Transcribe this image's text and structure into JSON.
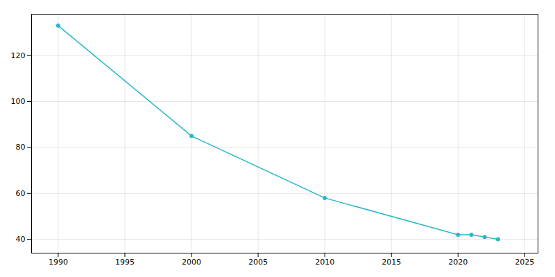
{
  "chart_data": {
    "type": "line",
    "x": [
      1990,
      2000,
      2010,
      2020,
      2021,
      2022,
      2023
    ],
    "values": [
      133,
      85,
      58,
      42,
      42,
      41,
      40
    ],
    "color": "#29b8c8",
    "marker": "circle",
    "xlim": [
      1988,
      2026
    ],
    "ylim": [
      34,
      138
    ],
    "xticks": [
      1990,
      1995,
      2000,
      2005,
      2010,
      2015,
      2020,
      2025
    ],
    "yticks": [
      40,
      60,
      80,
      100,
      120
    ],
    "grid": true
  }
}
